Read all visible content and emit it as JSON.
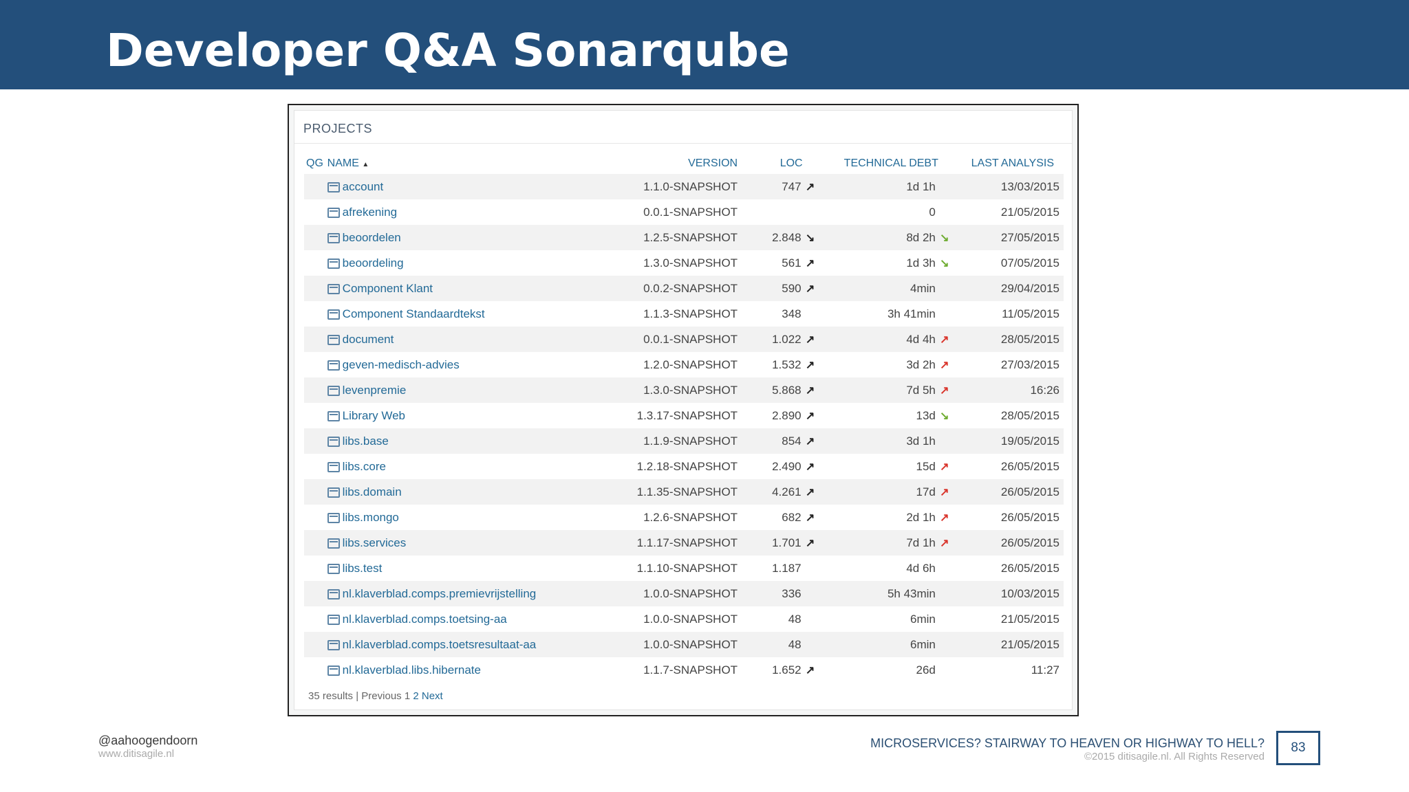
{
  "slide": {
    "title": "Developer Q&A Sonarqube",
    "footer_handle": "@aahoogendoorn",
    "footer_site": "www.ditisagile.nl",
    "footer_talk": "MICROSERVICES? STAIRWAY TO HEAVEN OR HIGHWAY TO HELL?",
    "footer_copyright": "©2015 ditisagile.nl. All Rights Reserved",
    "page_number": "83"
  },
  "colors": {
    "header": "#234f7b",
    "link": "#236a97",
    "arrow_neutral": "#222222",
    "arrow_red": "#d9342b",
    "arrow_green": "#6dab2f"
  },
  "projects": {
    "panel_title": "PROJECTS",
    "columns": {
      "qg": "QG",
      "name": "NAME",
      "sort_indicator": "▲",
      "version": "VERSION",
      "loc": "LOC",
      "debt": "TECHNICAL DEBT",
      "last": "LAST ANALYSIS"
    },
    "rows": [
      {
        "name": "account",
        "version": "1.1.0-SNAPSHOT",
        "loc": "747",
        "loc_icon": "arrow-up-neutral",
        "debt": "1d 1h",
        "debt_icon": "",
        "last": "13/03/2015"
      },
      {
        "name": "afrekening",
        "version": "0.0.1-SNAPSHOT",
        "loc": "",
        "loc_icon": "",
        "debt": "0",
        "debt_icon": "",
        "last": "21/05/2015"
      },
      {
        "name": "beoordelen",
        "version": "1.2.5-SNAPSHOT",
        "loc": "2.848",
        "loc_icon": "arrow-down-neutral",
        "debt": "8d 2h",
        "debt_icon": "arrow-down-green",
        "last": "27/05/2015"
      },
      {
        "name": "beoordeling",
        "version": "1.3.0-SNAPSHOT",
        "loc": "561",
        "loc_icon": "arrow-up-neutral",
        "debt": "1d 3h",
        "debt_icon": "arrow-down-green",
        "last": "07/05/2015"
      },
      {
        "name": "Component Klant",
        "version": "0.0.2-SNAPSHOT",
        "loc": "590",
        "loc_icon": "arrow-up-neutral",
        "debt": "4min",
        "debt_icon": "",
        "last": "29/04/2015"
      },
      {
        "name": "Component Standaardtekst",
        "version": "1.1.3-SNAPSHOT",
        "loc": "348",
        "loc_icon": "",
        "debt": "3h 41min",
        "debt_icon": "",
        "last": "11/05/2015"
      },
      {
        "name": "document",
        "version": "0.0.1-SNAPSHOT",
        "loc": "1.022",
        "loc_icon": "arrow-up-neutral",
        "debt": "4d 4h",
        "debt_icon": "arrow-up-red",
        "last": "28/05/2015"
      },
      {
        "name": "geven-medisch-advies",
        "version": "1.2.0-SNAPSHOT",
        "loc": "1.532",
        "loc_icon": "arrow-up-neutral",
        "debt": "3d 2h",
        "debt_icon": "arrow-up-red",
        "last": "27/03/2015"
      },
      {
        "name": "levenpremie",
        "version": "1.3.0-SNAPSHOT",
        "loc": "5.868",
        "loc_icon": "arrow-up-neutral",
        "debt": "7d 5h",
        "debt_icon": "arrow-up-red",
        "last": "16:26"
      },
      {
        "name": "Library Web",
        "version": "1.3.17-SNAPSHOT",
        "loc": "2.890",
        "loc_icon": "arrow-up-neutral",
        "debt": "13d",
        "debt_icon": "arrow-down-green",
        "last": "28/05/2015"
      },
      {
        "name": "libs.base",
        "version": "1.1.9-SNAPSHOT",
        "loc": "854",
        "loc_icon": "arrow-up-neutral",
        "debt": "3d 1h",
        "debt_icon": "",
        "last": "19/05/2015"
      },
      {
        "name": "libs.core",
        "version": "1.2.18-SNAPSHOT",
        "loc": "2.490",
        "loc_icon": "arrow-up-neutral",
        "debt": "15d",
        "debt_icon": "arrow-up-red",
        "last": "26/05/2015"
      },
      {
        "name": "libs.domain",
        "version": "1.1.35-SNAPSHOT",
        "loc": "4.261",
        "loc_icon": "arrow-up-neutral",
        "debt": "17d",
        "debt_icon": "arrow-up-red",
        "last": "26/05/2015"
      },
      {
        "name": "libs.mongo",
        "version": "1.2.6-SNAPSHOT",
        "loc": "682",
        "loc_icon": "arrow-up-neutral",
        "debt": "2d 1h",
        "debt_icon": "arrow-up-red",
        "last": "26/05/2015"
      },
      {
        "name": "libs.services",
        "version": "1.1.17-SNAPSHOT",
        "loc": "1.701",
        "loc_icon": "arrow-up-neutral",
        "debt": "7d 1h",
        "debt_icon": "arrow-up-red",
        "last": "26/05/2015"
      },
      {
        "name": "libs.test",
        "version": "1.1.10-SNAPSHOT",
        "loc": "1.187",
        "loc_icon": "",
        "debt": "4d 6h",
        "debt_icon": "",
        "last": "26/05/2015"
      },
      {
        "name": "nl.klaverblad.comps.premievrijstelling",
        "version": "1.0.0-SNAPSHOT",
        "loc": "336",
        "loc_icon": "",
        "debt": "5h 43min",
        "debt_icon": "",
        "last": "10/03/2015"
      },
      {
        "name": "nl.klaverblad.comps.toetsing-aa",
        "version": "1.0.0-SNAPSHOT",
        "loc": "48",
        "loc_icon": "",
        "debt": "6min",
        "debt_icon": "",
        "last": "21/05/2015"
      },
      {
        "name": "nl.klaverblad.comps.toetsresultaat-aa",
        "version": "1.0.0-SNAPSHOT",
        "loc": "48",
        "loc_icon": "",
        "debt": "6min",
        "debt_icon": "",
        "last": "21/05/2015"
      },
      {
        "name": "nl.klaverblad.libs.hibernate",
        "version": "1.1.7-SNAPSHOT",
        "loc": "1.652",
        "loc_icon": "arrow-up-neutral",
        "debt": "26d",
        "debt_icon": "",
        "last": "11:27"
      }
    ],
    "pager": {
      "results": "35 results",
      "separator": "|",
      "previous": "Previous",
      "page1": "1",
      "page2": "2",
      "next": "Next"
    }
  }
}
